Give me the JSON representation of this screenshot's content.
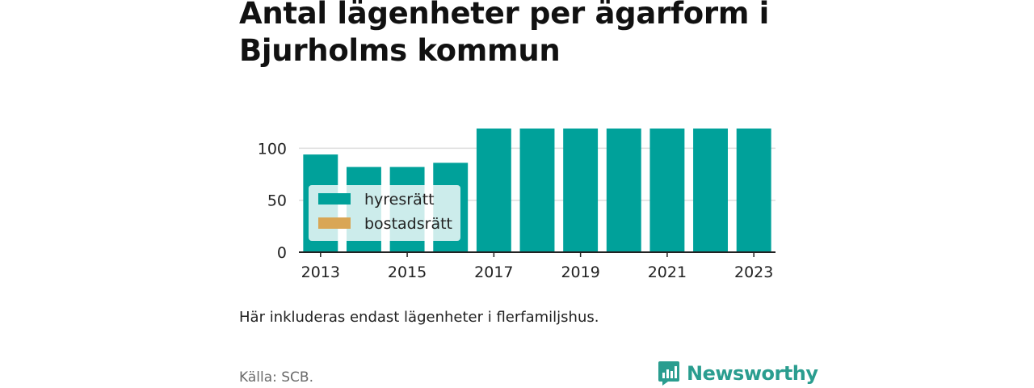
{
  "title": "Antal lägenheter per ägarform i Bjurholms kommun",
  "note": "Här inkluderas endast lägenheter i flerfamiljshus.",
  "source": "Källa: SCB.",
  "brand": "Newsworthy",
  "colors": {
    "hyresratt": "#00a19a",
    "bostadsratt": "#d9a655",
    "brand": "#2a9d8f"
  },
  "chart_data": {
    "type": "bar",
    "stacked": true,
    "categories": [
      "2013",
      "2014",
      "2015",
      "2016",
      "2017",
      "2018",
      "2019",
      "2020",
      "2021",
      "2022",
      "2023"
    ],
    "x_tick_labels": [
      "2013",
      "2015",
      "2017",
      "2019",
      "2021",
      "2023"
    ],
    "series": [
      {
        "name": "hyresrätt",
        "values": [
          94,
          82,
          82,
          86,
          119,
          119,
          119,
          119,
          119,
          119,
          119
        ]
      },
      {
        "name": "bostadsrätt",
        "values": [
          0,
          0,
          0,
          0,
          0,
          0,
          0,
          0,
          0,
          0,
          0
        ]
      }
    ],
    "y_ticks": [
      0,
      50,
      100
    ],
    "ylim": [
      0,
      120
    ],
    "grid": true,
    "legend_position": "bottom-left"
  }
}
